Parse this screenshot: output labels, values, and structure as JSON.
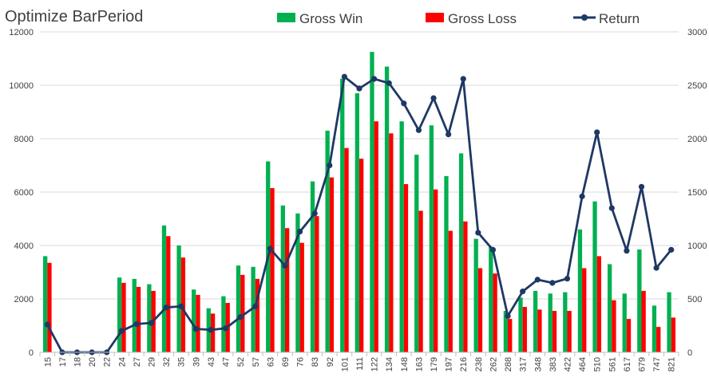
{
  "chart_data": {
    "type": "bar",
    "title": "Optimize BarPeriod",
    "xlabel": "",
    "ylabel": "",
    "ylim": [
      0,
      12000
    ],
    "y2lim": [
      0,
      3000
    ],
    "yticks": [
      "0",
      "2000",
      "4000",
      "6000",
      "8000",
      "10000",
      "12000"
    ],
    "y2ticks": [
      "0",
      "500",
      "1000",
      "1500",
      "2000",
      "2500",
      "3000"
    ],
    "grid": true,
    "legend": "top",
    "categories": [
      "15",
      "17",
      "18",
      "20",
      "22",
      "24",
      "27",
      "29",
      "32",
      "35",
      "39",
      "43",
      "47",
      "52",
      "57",
      "63",
      "69",
      "76",
      "83",
      "92",
      "101",
      "111",
      "122",
      "134",
      "148",
      "163",
      "179",
      "197",
      "216",
      "238",
      "262",
      "288",
      "317",
      "348",
      "383",
      "422",
      "464",
      "510",
      "561",
      "617",
      "679",
      "747",
      "821"
    ],
    "series": [
      {
        "name": "Gross Win",
        "type": "bar",
        "axis": "left",
        "color": "#00B050",
        "values": [
          3600,
          0,
          0,
          0,
          0,
          2800,
          2750,
          2550,
          4750,
          4000,
          2350,
          1650,
          2100,
          3250,
          3200,
          7150,
          5500,
          5200,
          6400,
          8300,
          10250,
          9700,
          11250,
          10700,
          8650,
          7400,
          8500,
          6600,
          7450,
          4250,
          3950,
          1550,
          2050,
          2300,
          2200,
          2250,
          4600,
          5650,
          3300,
          2200,
          3850,
          1750,
          2250
        ]
      },
      {
        "name": "Gross Loss",
        "type": "bar",
        "axis": "left",
        "color": "#FF0000",
        "values": [
          3350,
          0,
          0,
          0,
          0,
          2600,
          2450,
          2300,
          4350,
          3550,
          2150,
          1450,
          1850,
          2900,
          2750,
          6150,
          4650,
          4100,
          5100,
          6550,
          7650,
          7250,
          8650,
          8200,
          6300,
          5300,
          6100,
          4550,
          4900,
          3150,
          2950,
          1250,
          1700,
          1600,
          1550,
          1550,
          3150,
          3600,
          1950,
          1250,
          2300,
          950,
          1300
        ]
      },
      {
        "name": "Return",
        "type": "line",
        "axis": "right",
        "color": "#1F3864",
        "values": [
          260,
          0,
          0,
          0,
          0,
          200,
          265,
          275,
          420,
          430,
          220,
          210,
          225,
          330,
          430,
          970,
          810,
          1130,
          1300,
          1750,
          2580,
          2470,
          2560,
          2520,
          2330,
          2080,
          2380,
          2040,
          2560,
          1120,
          960,
          340,
          570,
          680,
          650,
          690,
          1460,
          2060,
          1350,
          950,
          1550,
          790,
          960
        ]
      }
    ]
  }
}
